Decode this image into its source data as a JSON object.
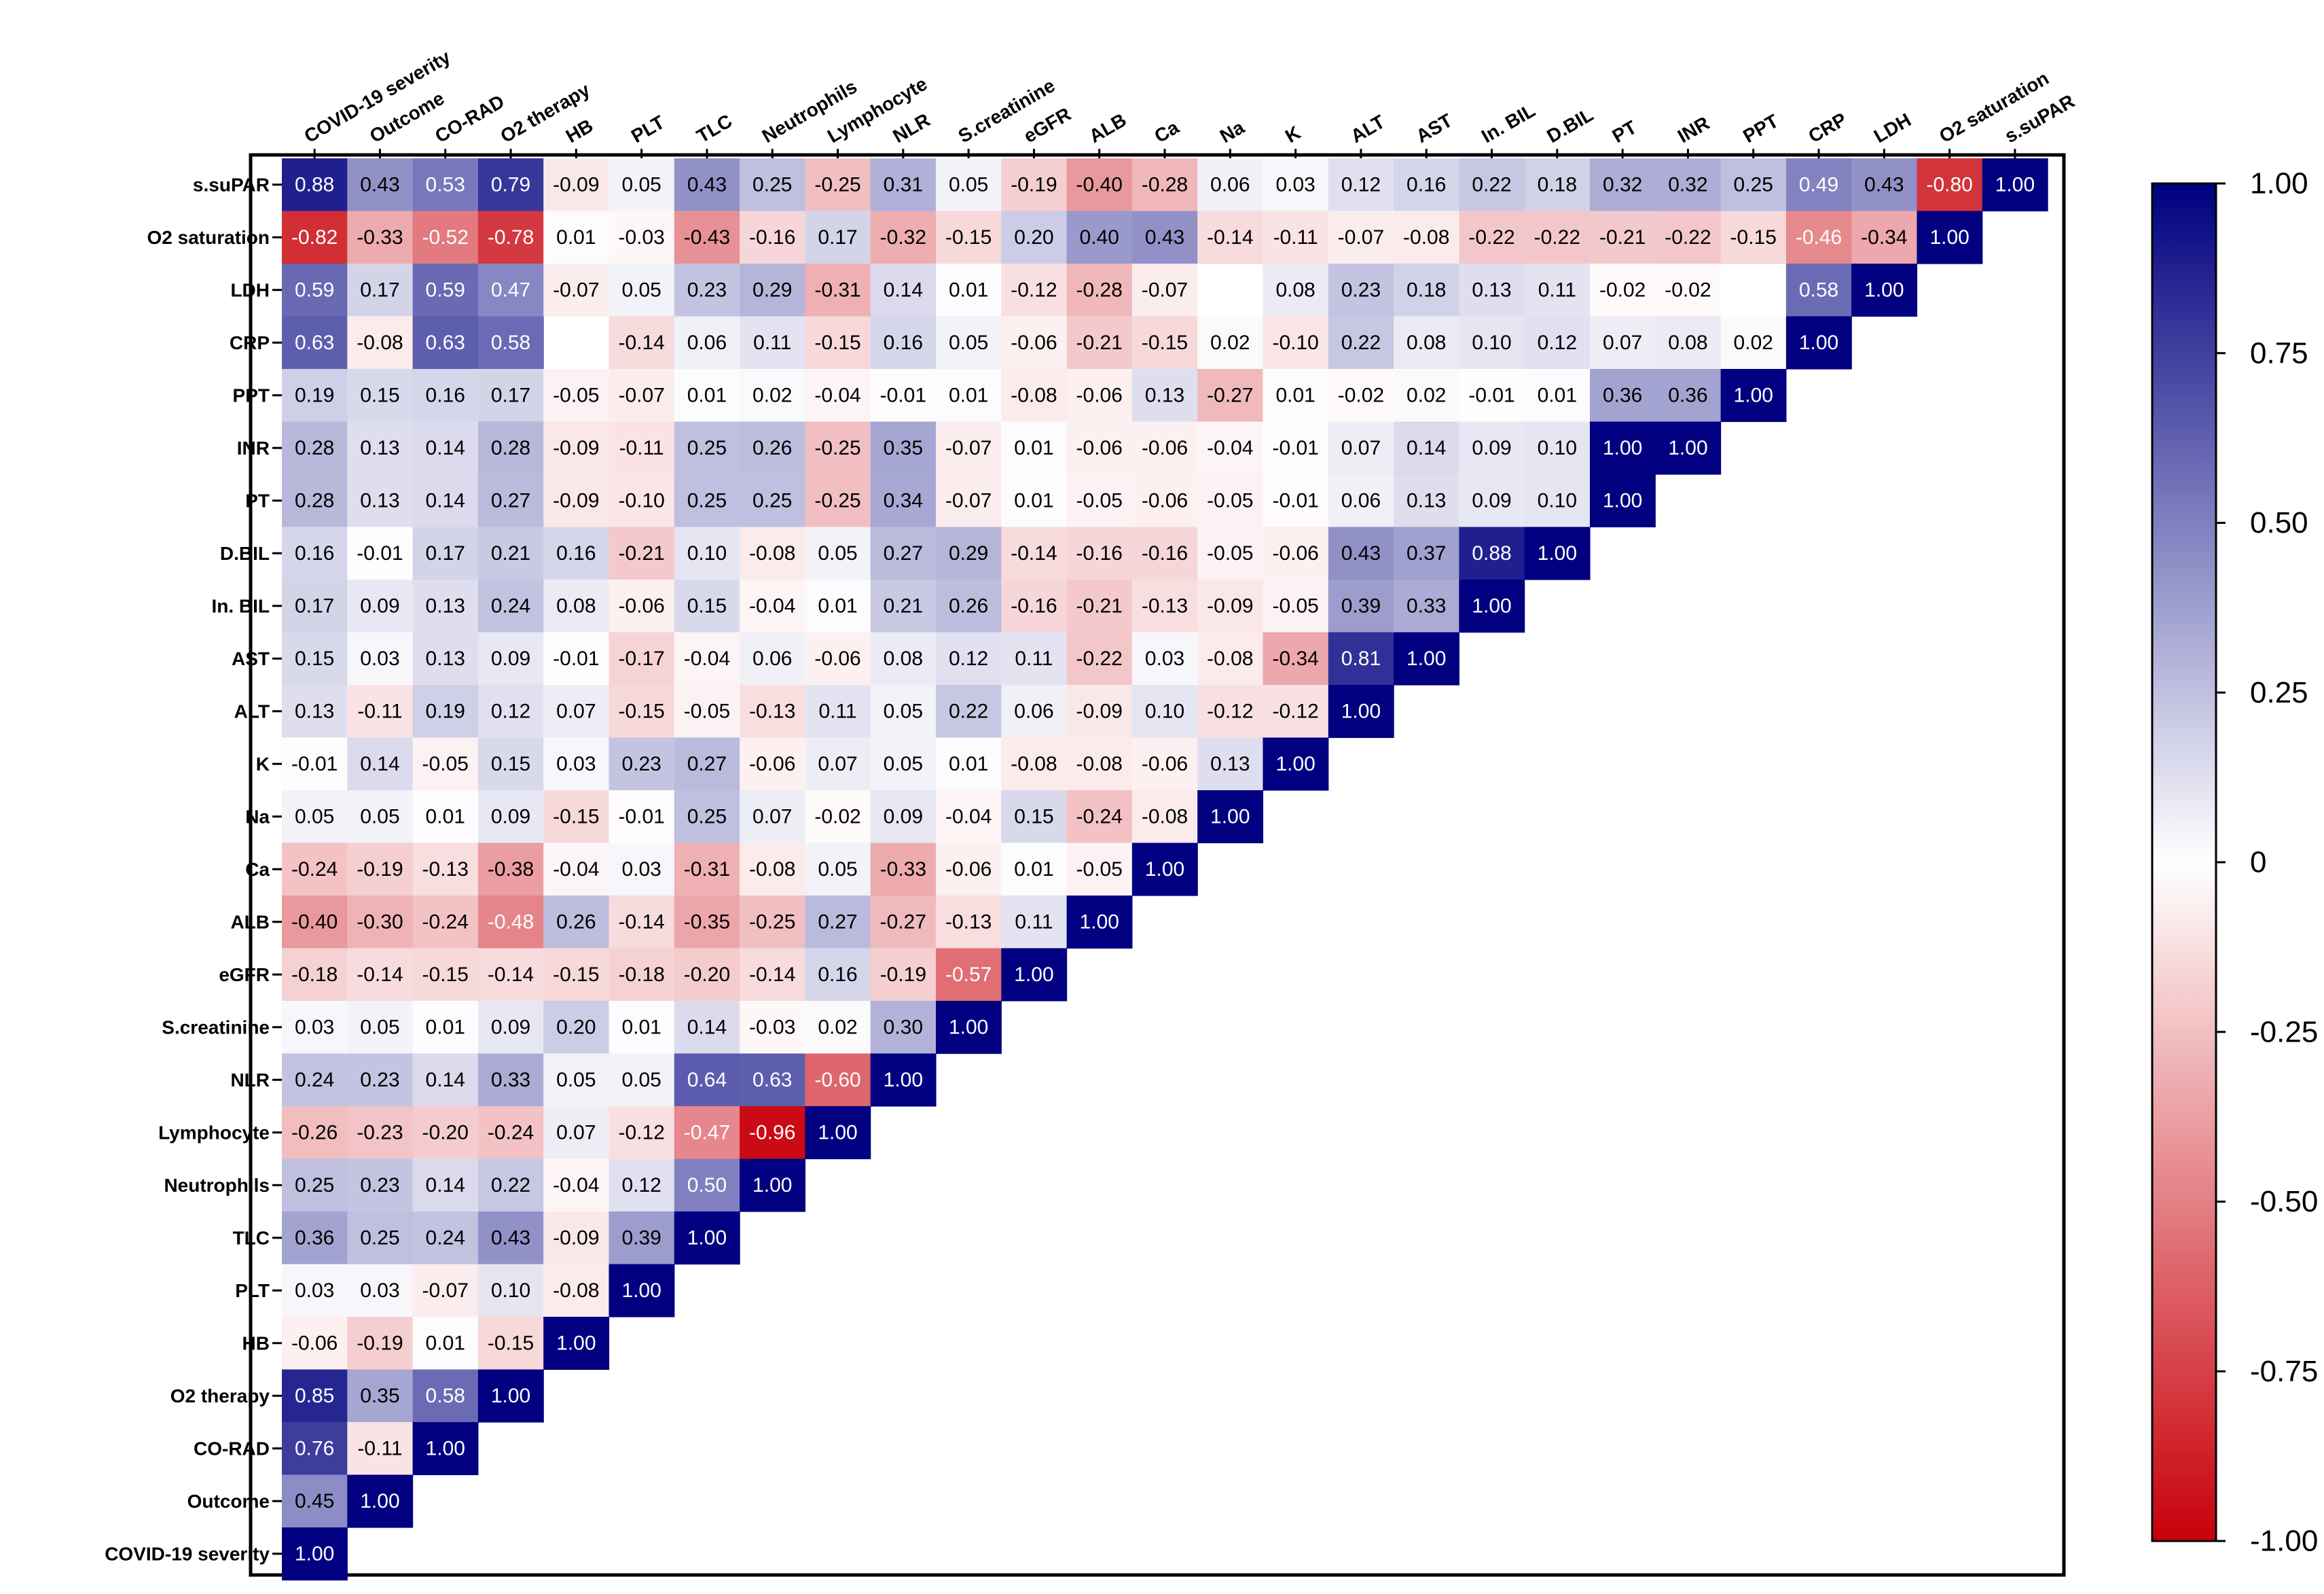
{
  "chart_data": {
    "type": "heatmap",
    "title": "",
    "layout": "lower-triangular correlation matrix",
    "columns": [
      "COVID-19 severity",
      "Outcome",
      "CO-RAD",
      "O2 therapy",
      "HB",
      "PLT",
      "TLC",
      "Neutrophils",
      "Lymphocyte",
      "NLR",
      "S.creatinine",
      "eGFR",
      "ALB",
      "Ca",
      "Na",
      "K",
      "ALT",
      "AST",
      "In. BIL",
      "D.BIL",
      "PT",
      "INR",
      "PPT",
      "CRP",
      "LDH",
      "O2 saturation",
      "s.suPAR"
    ],
    "rows": [
      "s.suPAR",
      "O2 saturation",
      "LDH",
      "CRP",
      "PPT",
      "INR",
      "PT",
      "D.BIL",
      "In. BIL",
      "AST",
      "ALT",
      "K",
      "Na",
      "Ca",
      "ALB",
      "eGFR",
      "S.creatinine",
      "NLR",
      "Lymphocyte",
      "Neutrophils",
      "TLC",
      "PLT",
      "HB",
      "O2 therapy",
      "CO-RAD",
      "Outcome",
      "COVID-19 severity"
    ],
    "values": [
      [
        0.88,
        0.43,
        0.53,
        0.79,
        -0.09,
        0.05,
        0.43,
        0.25,
        -0.25,
        0.31,
        0.05,
        -0.19,
        -0.4,
        -0.28,
        0.06,
        0.03,
        0.12,
        0.16,
        0.22,
        0.18,
        0.32,
        0.32,
        0.25,
        0.49,
        0.43,
        -0.8,
        1.0
      ],
      [
        -0.82,
        -0.33,
        -0.52,
        -0.78,
        0.01,
        -0.03,
        -0.43,
        -0.16,
        0.17,
        -0.32,
        -0.15,
        0.2,
        0.4,
        0.43,
        -0.14,
        -0.11,
        -0.07,
        -0.08,
        -0.22,
        -0.22,
        -0.21,
        -0.22,
        -0.15,
        -0.46,
        -0.34,
        1.0
      ],
      [
        0.59,
        0.17,
        0.59,
        0.47,
        -0.07,
        0.05,
        0.23,
        0.29,
        -0.31,
        0.14,
        0.01,
        -0.12,
        -0.28,
        -0.07,
        null,
        0.08,
        0.23,
        0.18,
        0.13,
        0.11,
        -0.02,
        -0.02,
        null,
        0.58,
        1.0
      ],
      [
        0.63,
        -0.08,
        0.63,
        0.58,
        null,
        -0.14,
        0.06,
        0.11,
        -0.15,
        0.16,
        0.05,
        -0.06,
        -0.21,
        -0.15,
        0.02,
        -0.1,
        0.22,
        0.08,
        0.1,
        0.12,
        0.07,
        0.08,
        0.02,
        1.0
      ],
      [
        0.19,
        0.15,
        0.16,
        0.17,
        -0.05,
        -0.07,
        0.01,
        0.02,
        -0.04,
        -0.01,
        0.01,
        -0.08,
        -0.06,
        0.13,
        -0.27,
        0.01,
        -0.02,
        0.02,
        -0.01,
        0.01,
        0.36,
        0.36,
        1.0
      ],
      [
        0.28,
        0.13,
        0.14,
        0.28,
        -0.09,
        -0.11,
        0.25,
        0.26,
        -0.25,
        0.35,
        -0.07,
        0.01,
        -0.06,
        -0.06,
        -0.04,
        -0.01,
        0.07,
        0.14,
        0.09,
        0.1,
        1.0,
        1.0
      ],
      [
        0.28,
        0.13,
        0.14,
        0.27,
        -0.09,
        -0.1,
        0.25,
        0.25,
        -0.25,
        0.34,
        -0.07,
        0.01,
        -0.05,
        -0.06,
        -0.05,
        -0.01,
        0.06,
        0.13,
        0.09,
        0.1,
        1.0
      ],
      [
        0.16,
        -0.01,
        0.17,
        0.21,
        0.16,
        -0.21,
        0.1,
        -0.08,
        0.05,
        0.27,
        0.29,
        -0.14,
        -0.16,
        -0.16,
        -0.05,
        -0.06,
        0.43,
        0.37,
        0.88,
        1.0
      ],
      [
        0.17,
        0.09,
        0.13,
        0.24,
        0.08,
        -0.06,
        0.15,
        -0.04,
        0.01,
        0.21,
        0.26,
        -0.16,
        -0.21,
        -0.13,
        -0.09,
        -0.05,
        0.39,
        0.33,
        1.0
      ],
      [
        0.15,
        0.03,
        0.13,
        0.09,
        -0.01,
        -0.17,
        -0.04,
        0.06,
        -0.06,
        0.08,
        0.12,
        0.11,
        -0.22,
        0.03,
        -0.08,
        -0.34,
        0.81,
        1.0
      ],
      [
        0.13,
        -0.11,
        0.19,
        0.12,
        0.07,
        -0.15,
        -0.05,
        -0.13,
        0.11,
        0.05,
        0.22,
        0.06,
        -0.09,
        0.1,
        -0.12,
        -0.12,
        1.0
      ],
      [
        -0.01,
        0.14,
        -0.05,
        0.15,
        0.03,
        0.23,
        0.27,
        -0.06,
        0.07,
        0.05,
        0.01,
        -0.08,
        -0.08,
        -0.06,
        0.13,
        1.0
      ],
      [
        0.05,
        0.05,
        0.01,
        0.09,
        -0.15,
        -0.01,
        0.25,
        0.07,
        -0.02,
        0.09,
        -0.04,
        0.15,
        -0.24,
        -0.08,
        1.0
      ],
      [
        -0.24,
        -0.19,
        -0.13,
        -0.38,
        -0.04,
        0.03,
        -0.31,
        -0.08,
        0.05,
        -0.33,
        -0.06,
        0.01,
        -0.05,
        1.0
      ],
      [
        -0.4,
        -0.3,
        -0.24,
        -0.48,
        0.26,
        -0.14,
        -0.35,
        -0.25,
        0.27,
        -0.27,
        -0.13,
        0.11,
        1.0
      ],
      [
        -0.18,
        -0.14,
        -0.15,
        -0.14,
        -0.15,
        -0.18,
        -0.2,
        -0.14,
        0.16,
        -0.19,
        -0.57,
        1.0
      ],
      [
        0.03,
        0.05,
        0.01,
        0.09,
        0.2,
        0.01,
        0.14,
        -0.03,
        0.02,
        0.3,
        1.0
      ],
      [
        0.24,
        0.23,
        0.14,
        0.33,
        0.05,
        0.05,
        0.64,
        0.63,
        -0.6,
        1.0
      ],
      [
        -0.26,
        -0.23,
        -0.2,
        -0.24,
        0.07,
        -0.12,
        -0.47,
        -0.96,
        1.0
      ],
      [
        0.25,
        0.23,
        0.14,
        0.22,
        -0.04,
        0.12,
        0.5,
        1.0
      ],
      [
        0.36,
        0.25,
        0.24,
        0.43,
        -0.09,
        0.39,
        1.0
      ],
      [
        0.03,
        0.03,
        -0.07,
        0.1,
        -0.08,
        1.0
      ],
      [
        -0.06,
        -0.19,
        0.01,
        -0.15,
        1.0
      ],
      [
        0.85,
        0.35,
        0.58,
        1.0
      ],
      [
        0.76,
        -0.11,
        1.0
      ],
      [
        0.45,
        1.0
      ],
      [
        1.0
      ]
    ],
    "colorbar": {
      "range": [
        -1.0,
        1.0
      ],
      "ticks": [
        "1.00",
        "0.75",
        "0.50",
        "0.25",
        "0",
        "-0.25",
        "-0.50",
        "-0.75",
        "-1.00"
      ],
      "low_color": "#c8000a",
      "mid_color": "#ffffff",
      "high_color": "#000080"
    },
    "xlabel": "",
    "ylabel": ""
  }
}
